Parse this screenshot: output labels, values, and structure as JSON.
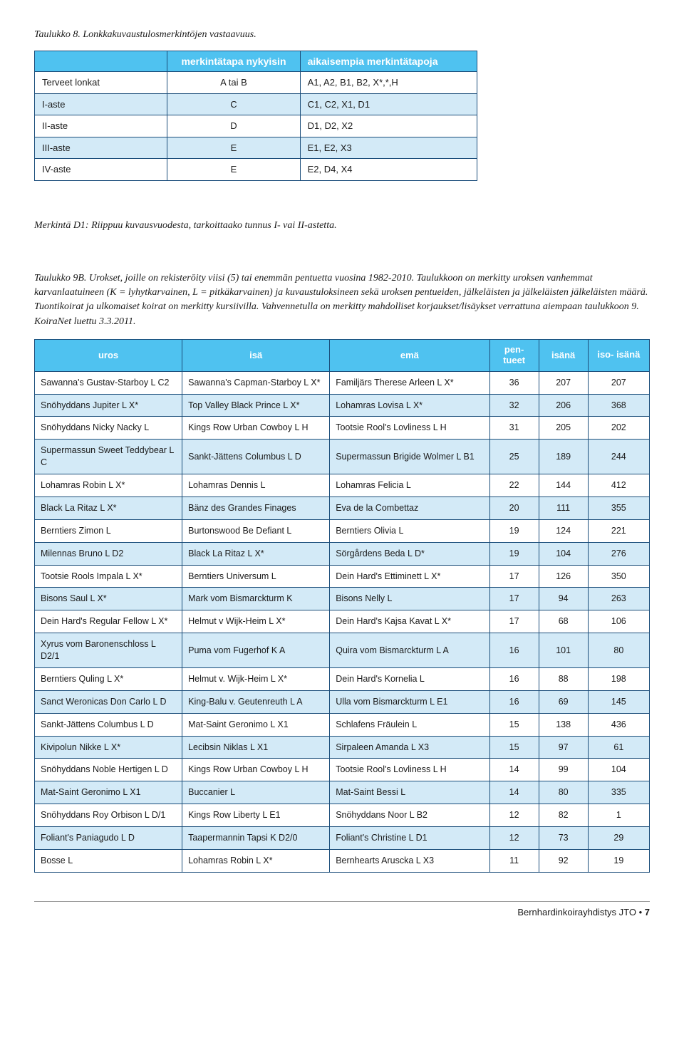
{
  "table8": {
    "caption": "Taulukko 8. Lonkkakuvaustulosmerkintöjen vastaavuus.",
    "headers": [
      "",
      "merkintätapa nykyisin",
      "aikaisempia merkintätapoja"
    ],
    "rows": [
      {
        "alt": false,
        "cells": [
          "Terveet lonkat",
          "A tai B",
          "A1, A2, B1, B2, X*,*,H"
        ]
      },
      {
        "alt": true,
        "cells": [
          "I-aste",
          "C",
          "C1, C2, X1, D1"
        ]
      },
      {
        "alt": false,
        "cells": [
          "II-aste",
          "D",
          "D1, D2, X2"
        ]
      },
      {
        "alt": true,
        "cells": [
          "III-aste",
          "E",
          "E1, E2, X3"
        ]
      },
      {
        "alt": false,
        "cells": [
          "IV-aste",
          "E",
          "E2, D4, X4"
        ]
      }
    ],
    "note": "Merkintä D1: Riippuu kuvausvuodesta, tarkoittaako tunnus I- vai II-astetta."
  },
  "table9": {
    "caption": "Taulukko 9B. Urokset, joille on rekisteröity viisi (5) tai enemmän pentuetta vuosina 1982-2010. Taulukkoon on merkitty uroksen vanhemmat karvanlaatuineen (K = lyhytkarvainen, L = pitkäkarvainen) ja kuvaustuloksineen sekä uroksen pentueiden, jälkeläisten ja jälkeläisten jälkeläisten määrä. Tuontikoirat ja ulkomaiset koirat on merkitty kursiivilla. Vahvennetulla on merkitty mahdolliset korjaukset/lisäykset verrattuna aiempaan taulukkoon 9. KoiraNet luettu 3.3.2011.",
    "headers": [
      "uros",
      "isä",
      "emä",
      "pen-\ntueet",
      "isänä",
      "iso-\nisänä"
    ],
    "rows": [
      {
        "alt": false,
        "cells": [
          "Sawanna's Gustav-Starboy L C2",
          "Sawanna's Capman-Starboy L X*",
          "Familjärs Therese Arleen L X*",
          "36",
          "207",
          "207"
        ]
      },
      {
        "alt": true,
        "cells": [
          "Snöhyddans Jupiter L X*",
          "Top Valley Black Prince L X*",
          "Lohamras Lovisa L X*",
          "32",
          "206",
          "368"
        ]
      },
      {
        "alt": false,
        "cells": [
          "Snöhyddans Nicky Nacky L",
          "Kings Row Urban Cowboy L H",
          "Tootsie Rool's Lovliness L H",
          "31",
          "205",
          "202"
        ]
      },
      {
        "alt": true,
        "cells": [
          "Supermassun Sweet Teddybear L C",
          "Sankt-Jättens Columbus L D",
          "Supermassun Brigide Wolmer L B1",
          "25",
          "189",
          "244"
        ]
      },
      {
        "alt": false,
        "cells": [
          "Lohamras Robin L X*",
          "Lohamras Dennis L",
          "Lohamras Felicia L",
          "22",
          "144",
          "412"
        ]
      },
      {
        "alt": true,
        "cells": [
          "Black La Ritaz L X*",
          "Bänz des Grandes Finages",
          "Eva de la Combettaz",
          "20",
          "111",
          "355"
        ]
      },
      {
        "alt": false,
        "cells": [
          "Berntiers Zimon L",
          "Burtonswood Be Defiant L",
          "Berntiers Olivia L",
          "19",
          "124",
          "221"
        ]
      },
      {
        "alt": true,
        "cells": [
          "Milennas Bruno L D2",
          "Black La Ritaz L X*",
          "Sörgårdens Beda L D*",
          "19",
          "104",
          "276"
        ]
      },
      {
        "alt": false,
        "cells": [
          "Tootsie Rools Impala L X*",
          "Berntiers Universum L",
          "Dein Hard's Ettiminett L X*",
          "17",
          "126",
          "350"
        ]
      },
      {
        "alt": true,
        "cells": [
          "Bisons Saul L X*",
          "Mark vom Bismarckturm K",
          "Bisons Nelly L",
          "17",
          "94",
          "263"
        ]
      },
      {
        "alt": false,
        "cells": [
          "Dein Hard's Regular Fellow L X*",
          "Helmut v Wijk-Heim L X*",
          "Dein Hard's Kajsa Kavat L X*",
          "17",
          "68",
          "106"
        ]
      },
      {
        "alt": true,
        "cells": [
          "Xyrus vom Baronenschloss L D2/1",
          "Puma vom Fugerhof K A",
          "Quira vom Bismarckturm L A",
          "16",
          "101",
          "80"
        ]
      },
      {
        "alt": false,
        "cells": [
          "Berntiers Quling L X*",
          "Helmut v. Wijk-Heim L X*",
          "Dein Hard's Kornelia L",
          "16",
          "88",
          "198"
        ]
      },
      {
        "alt": true,
        "cells": [
          "Sanct Weronicas Don Carlo L D",
          "King-Balu v. Geutenreuth L A",
          "Ulla vom Bismarckturm L E1",
          "16",
          "69",
          "145"
        ]
      },
      {
        "alt": false,
        "cells": [
          "Sankt-Jättens Columbus L D",
          "Mat-Saint Geronimo L X1",
          "Schlafens Fräulein L",
          "15",
          "138",
          "436"
        ]
      },
      {
        "alt": true,
        "cells": [
          "Kivipolun Nikke L X*",
          "Lecibsin Niklas L X1",
          "Sirpaleen Amanda L X3",
          "15",
          "97",
          "61"
        ]
      },
      {
        "alt": false,
        "cells": [
          "Snöhyddans Noble Hertigen L D",
          "Kings Row Urban Cowboy L H",
          "Tootsie Rool's Lovliness L H",
          "14",
          "99",
          "104"
        ]
      },
      {
        "alt": true,
        "cells": [
          "Mat-Saint Geronimo L X1",
          "Buccanier L",
          "Mat-Saint Bessi L",
          "14",
          "80",
          "335"
        ]
      },
      {
        "alt": false,
        "cells": [
          "Snöhyddans Roy Orbison L D/1",
          "Kings Row Liberty L E1",
          "Snöhyddans Noor L B2",
          "12",
          "82",
          "1"
        ]
      },
      {
        "alt": true,
        "cells": [
          "Foliant's Paniagudo L D",
          "Taapermannin Tapsi K D2/0",
          "Foliant's Christine L D1",
          "12",
          "73",
          "29"
        ]
      },
      {
        "alt": false,
        "cells": [
          "Bosse L",
          "Lohamras Robin L X*",
          "Bernhearts Aruscka L X3",
          "11",
          "92",
          "19"
        ]
      }
    ]
  },
  "footer": {
    "org": "Bernhardinkoirayhdistys JTO",
    "sep": " • ",
    "page": "7"
  }
}
